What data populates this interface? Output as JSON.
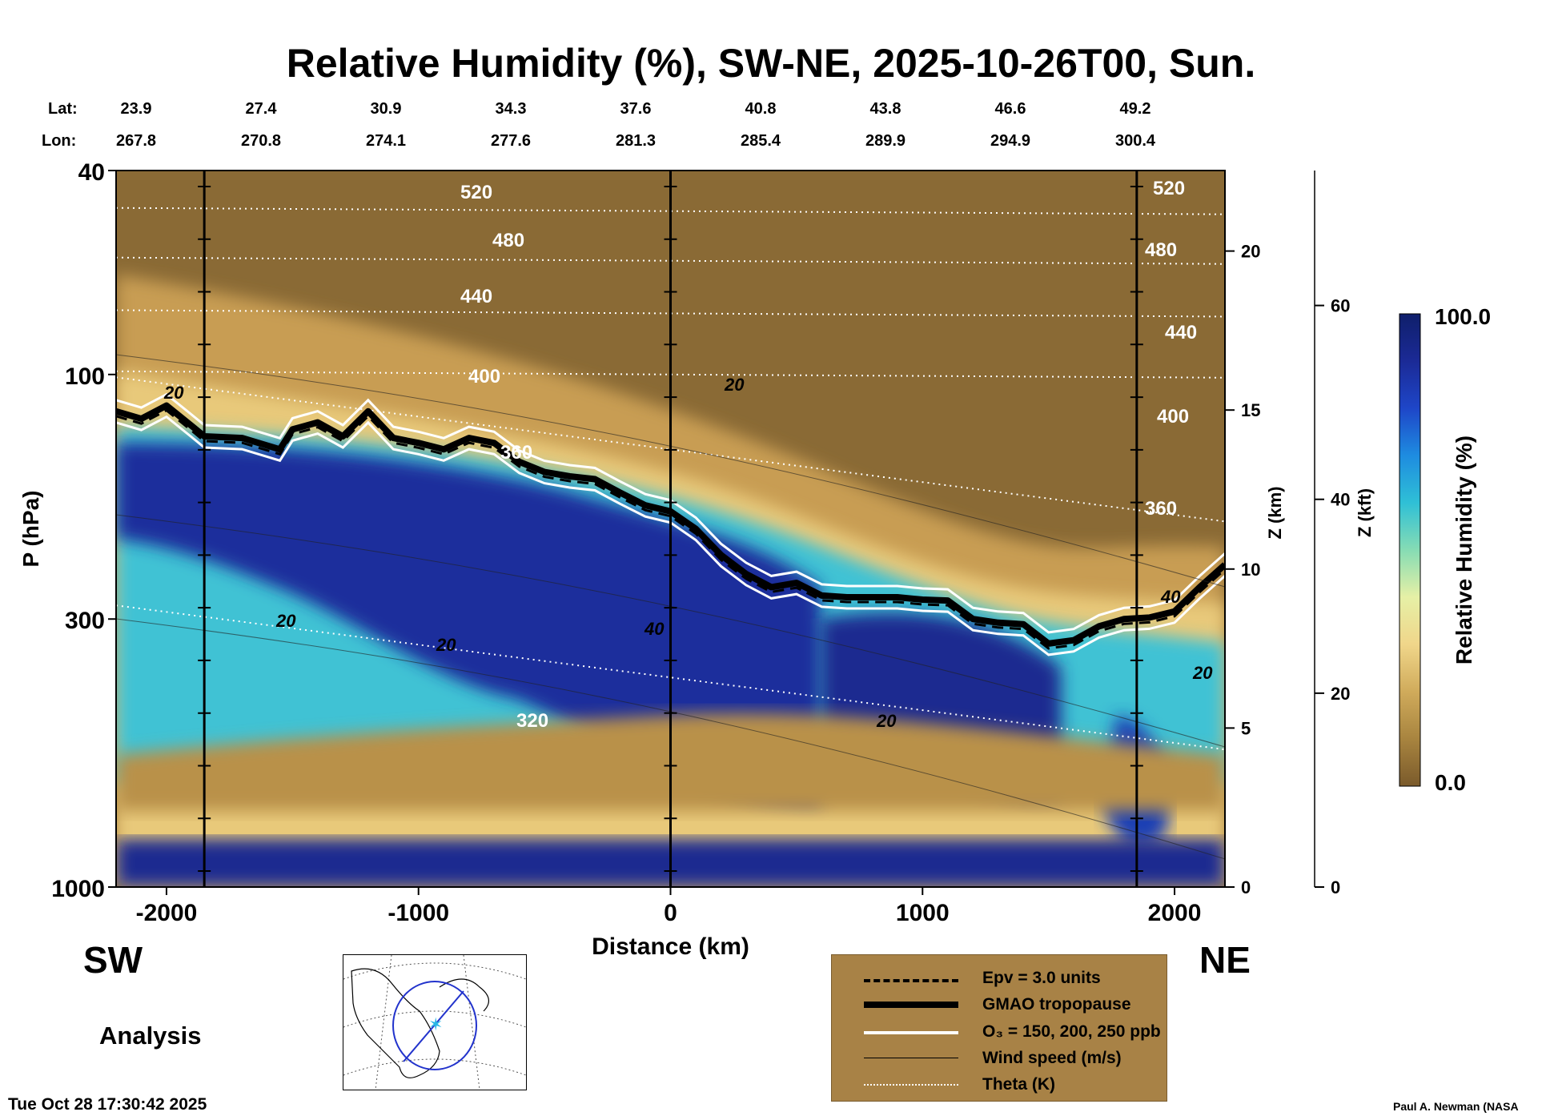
{
  "chart_data": {
    "type": "heatmap",
    "title": "Relative Humidity (%), SW-NE, 2025-10-26T00, Sun.",
    "xlabel": "Distance (km)",
    "ylabel": "P (hPa)",
    "right_axis_1_label": "Z (km)",
    "right_axis_2_label": "Z (kft)",
    "xlim": [
      -2200,
      2200
    ],
    "ylim_hpa": [
      1000,
      40
    ],
    "y_scale": "log",
    "x_ticks": [
      "-2000",
      "-1000",
      "0",
      "1000",
      "2000"
    ],
    "x_tick_values": [
      -2000,
      -1000,
      0,
      1000,
      2000
    ],
    "y_ticks": [
      "40",
      "100",
      "300",
      "1000"
    ],
    "y_tick_values": [
      40,
      100,
      300,
      1000
    ],
    "z_km_ticks": [
      "0",
      "5",
      "10",
      "15",
      "20"
    ],
    "z_km_values": [
      0,
      5,
      10,
      15,
      20
    ],
    "z_kft_ticks": [
      "0",
      "20",
      "40",
      "60"
    ],
    "z_kft_values": [
      0,
      20,
      40,
      60
    ],
    "lat_label": "Lat:",
    "lon_label": "Lon:",
    "lat_values": [
      "23.9",
      "27.4",
      "30.9",
      "34.3",
      "37.6",
      "40.8",
      "43.8",
      "46.6",
      "49.2"
    ],
    "lon_values": [
      "267.8",
      "270.8",
      "274.1",
      "277.6",
      "281.3",
      "285.4",
      "289.9",
      "294.9",
      "300.4"
    ],
    "vertical_marker_lines_km": [
      -1850,
      0,
      1850
    ],
    "tropopause": {
      "name": "GMAO tropopause",
      "x": [
        -2200,
        -2100,
        -2000,
        -1900,
        -1850,
        -1700,
        -1550,
        -1500,
        -1400,
        -1300,
        -1200,
        -1100,
        -1000,
        -900,
        -800,
        -700,
        -600,
        -500,
        -400,
        -300,
        -200,
        -100,
        0,
        100,
        200,
        300,
        400,
        500,
        600,
        700,
        800,
        900,
        1000,
        1100,
        1200,
        1300,
        1400,
        1500,
        1600,
        1700,
        1800,
        1900,
        2000,
        2100,
        2200
      ],
      "hpa": [
        118,
        122,
        115,
        126,
        132,
        133,
        140,
        128,
        124,
        132,
        118,
        133,
        136,
        140,
        133,
        136,
        148,
        155,
        158,
        160,
        170,
        180,
        185,
        200,
        225,
        245,
        260,
        255,
        270,
        272,
        272,
        272,
        275,
        276,
        300,
        305,
        307,
        335,
        330,
        310,
        300,
        298,
        290,
        260,
        235
      ]
    },
    "theta_contours": [
      {
        "label": "520",
        "hpa_at_x0": 48
      },
      {
        "label": "480",
        "hpa_at_x0": 60
      },
      {
        "label": "440",
        "hpa_at_x0": 76
      },
      {
        "label": "400",
        "hpa_at_x0": 100
      },
      {
        "label": "360",
        "hpa_at_x0": 140
      },
      {
        "label": "320",
        "hpa_at_x0": 390
      }
    ],
    "colorbar": {
      "label": "Relative Humidity (%)",
      "max_label": "100.0",
      "min_label": "0.0",
      "range": [
        0,
        100
      ],
      "colors": [
        "#7a5a2b",
        "#a8843f",
        "#d0ab5b",
        "#f0d68a",
        "#e6f0a6",
        "#86dcb4",
        "#2fc0d6",
        "#1e8ce0",
        "#1e46c8",
        "#1b2a96",
        "#0f1f6b"
      ]
    }
  },
  "legend": {
    "items": [
      {
        "label": "Epv = 3.0 units",
        "style": "dashed-black"
      },
      {
        "label": "GMAO tropopause",
        "style": "thick-black"
      },
      {
        "label": "O₃ = 150, 200, 250 ppb",
        "style": "white"
      },
      {
        "label": "Wind speed (m/s)",
        "style": "thin-black"
      },
      {
        "label": "Theta (K)",
        "style": "dotted-white"
      }
    ]
  },
  "labels": {
    "left_direction": "SW",
    "right_direction": "NE",
    "analysis": "Analysis",
    "timestamp": "Tue Oct 28 17:30:42 2025",
    "credit": "Paul A. Newman (NASA"
  }
}
